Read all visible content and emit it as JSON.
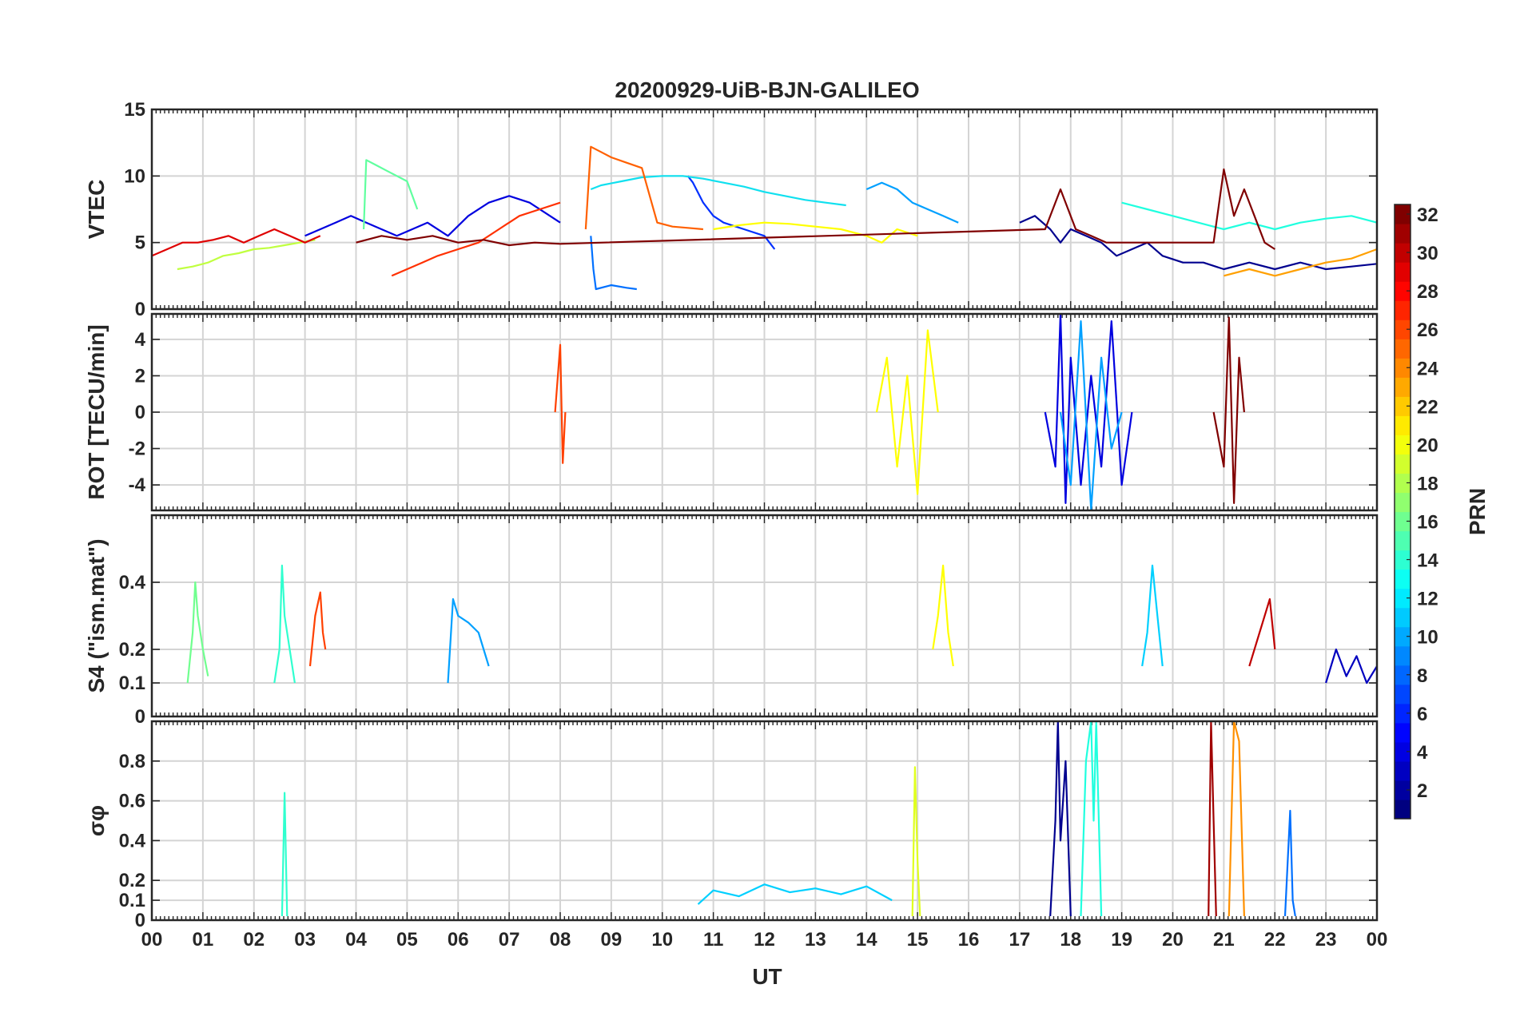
{
  "chart_data": {
    "type": "line",
    "title": "20200929-UiB-BJN-GALILEO",
    "xlabel": "UT",
    "x_tick_labels": [
      "00",
      "01",
      "02",
      "03",
      "04",
      "05",
      "06",
      "07",
      "08",
      "09",
      "10",
      "11",
      "12",
      "13",
      "14",
      "15",
      "16",
      "17",
      "18",
      "19",
      "20",
      "21",
      "22",
      "23",
      "00"
    ],
    "xlim": [
      0,
      24
    ],
    "panels": [
      {
        "id": "vtec",
        "ylabel": "VTEC",
        "ylim": [
          0,
          15
        ],
        "yticks": [
          0,
          5,
          10,
          15
        ],
        "ytick_labels": [
          "0",
          "5",
          "10",
          "15"
        ],
        "series": [
          {
            "prn": 1,
            "color": "#00008f",
            "x": [
              17.0,
              17.3,
              17.6,
              17.8,
              18.0,
              18.3,
              18.6,
              18.9,
              19.2,
              19.5,
              19.8,
              20.2,
              20.6,
              21.0,
              21.5,
              22.0,
              22.5,
              23.0,
              23.5,
              24.0
            ],
            "y": [
              6.5,
              7,
              6,
              5,
              6,
              5.5,
              5,
              4,
              4.5,
              5,
              4,
              3.5,
              3.5,
              3,
              3.5,
              3,
              3.5,
              3,
              3.2,
              3.4
            ]
          },
          {
            "prn": 3,
            "color": "#0000df",
            "x": [
              3.0,
              3.3,
              3.6,
              3.9,
              4.2,
              4.5,
              4.8,
              5.1,
              5.4,
              5.8,
              6.2,
              6.6,
              7.0,
              7.4,
              7.8,
              8.0
            ],
            "y": [
              5.5,
              6,
              6.5,
              7,
              6.5,
              6,
              5.5,
              6,
              6.5,
              5.5,
              7,
              8,
              8.5,
              8,
              7,
              6.5
            ]
          },
          {
            "prn": 5,
            "color": "#0030ff",
            "x": [
              10.5,
              10.6,
              10.8,
              11.0,
              11.2,
              11.6,
              12.0,
              12.2
            ],
            "y": [
              10,
              9.5,
              8,
              7,
              6.5,
              6,
              5.5,
              4.5
            ]
          },
          {
            "prn": 7,
            "color": "#0070ff",
            "x": [
              8.6,
              8.65,
              8.7,
              9.0,
              9.3,
              9.5
            ],
            "y": [
              5.5,
              3,
              1.5,
              1.8,
              1.6,
              1.5
            ]
          },
          {
            "prn": 9,
            "color": "#00a0ff",
            "x": [
              14.0,
              14.3,
              14.6,
              14.9,
              15.2,
              15.5,
              15.8
            ],
            "y": [
              9,
              9.5,
              9,
              8,
              7.5,
              7,
              6.5
            ]
          },
          {
            "prn": 12,
            "color": "#10e0ef",
            "x": [
              8.6,
              8.8,
              9.2,
              9.6,
              10.0,
              10.4,
              10.8,
              11.2,
              11.6,
              12.0,
              12.4,
              12.8,
              13.2,
              13.6
            ],
            "y": [
              9,
              9.3,
              9.6,
              9.9,
              10,
              10,
              9.8,
              9.5,
              9.2,
              8.8,
              8.5,
              8.2,
              8,
              7.8
            ]
          },
          {
            "prn": 13,
            "color": "#20ffdf",
            "x": [
              19.0,
              19.5,
              20.0,
              20.5,
              21.0,
              21.5,
              22.0,
              22.5,
              23.0,
              23.5,
              24.0
            ],
            "y": [
              8,
              7.5,
              7,
              6.5,
              6,
              6.5,
              6,
              6.5,
              6.8,
              7,
              6.5
            ]
          },
          {
            "prn": 15,
            "color": "#60ff9f",
            "x": [
              4.15,
              4.2,
              4.4,
              4.6,
              4.8,
              5.0,
              5.2
            ],
            "y": [
              6,
              11.2,
              10.8,
              10.4,
              10,
              9.6,
              7.5
            ]
          },
          {
            "prn": 18,
            "color": "#c0ff40",
            "x": [
              0.5,
              0.8,
              1.1,
              1.4,
              1.7,
              2.0,
              2.3,
              2.6,
              2.9,
              3.2
            ],
            "y": [
              3,
              3.2,
              3.5,
              4,
              4.2,
              4.5,
              4.6,
              4.8,
              5,
              5.2
            ]
          },
          {
            "prn": 20,
            "color": "#ffff00",
            "x": [
              11.0,
              11.5,
              12.0,
              12.5,
              13.0,
              13.5,
              14.0,
              14.3,
              14.6,
              15.0
            ],
            "y": [
              6,
              6.3,
              6.5,
              6.4,
              6.2,
              6,
              5.5,
              5,
              6,
              5.5
            ]
          },
          {
            "prn": 23,
            "color": "#ffa000",
            "x": [
              21.0,
              21.5,
              22.0,
              22.5,
              23.0,
              23.5,
              24.0
            ],
            "y": [
              2.5,
              3,
              2.5,
              3,
              3.5,
              3.8,
              4.5
            ]
          },
          {
            "prn": 25,
            "color": "#ff6000",
            "x": [
              8.5,
              8.6,
              8.8,
              9.0,
              9.3,
              9.6,
              9.9,
              10.2,
              10.5,
              10.8
            ],
            "y": [
              6,
              12.2,
              11.8,
              11.4,
              11,
              10.6,
              6.5,
              6.2,
              6.1,
              6
            ]
          },
          {
            "prn": 27,
            "color": "#ff3000",
            "x": [
              4.7,
              5.0,
              5.3,
              5.6,
              6.0,
              6.4,
              6.8,
              7.2,
              7.6,
              8.0
            ],
            "y": [
              2.5,
              3,
              3.5,
              4,
              4.5,
              5,
              6,
              7,
              7.5,
              8
            ]
          },
          {
            "prn": 29,
            "color": "#df0000",
            "x": [
              0.0,
              0.3,
              0.6,
              0.9,
              1.2,
              1.5,
              1.8,
              2.1,
              2.4,
              2.7,
              3.0,
              3.3
            ],
            "y": [
              4,
              4.5,
              5,
              5,
              5.2,
              5.5,
              5,
              5.5,
              6,
              5.5,
              5,
              5.5
            ]
          },
          {
            "prn": 32,
            "color": "#800000",
            "x": [
              4.0,
              4.5,
              5.0,
              5.5,
              6.0,
              6.5,
              7.0,
              7.5,
              8.0,
              17.5,
              17.8,
              18.1,
              18.4,
              18.7,
              20.8,
              21.0,
              21.2,
              21.4,
              21.6,
              21.8,
              22.0
            ],
            "y": [
              5,
              5.5,
              5.2,
              5.5,
              5,
              5.2,
              4.8,
              5,
              4.9,
              6,
              9,
              6,
              5.5,
              5,
              5,
              10.5,
              7,
              9,
              7,
              5,
              4.5
            ]
          }
        ]
      },
      {
        "id": "rot",
        "ylabel": "ROT [TECU/min]",
        "ylim": [
          -5.4,
          5.4
        ],
        "yticks": [
          -4,
          -2,
          0,
          2,
          4
        ],
        "ytick_labels": [
          "-4",
          "-2",
          "0",
          "2",
          "4"
        ],
        "series": [
          {
            "prn": 3,
            "color": "#0000df",
            "x": [
              17.5,
              17.7,
              17.8,
              17.9,
              18.0,
              18.2,
              18.4,
              18.6,
              18.8,
              19.0,
              19.2
            ],
            "y": [
              0,
              -3,
              5.4,
              -5,
              3,
              -4,
              2,
              -3,
              5,
              -4,
              0
            ]
          },
          {
            "prn": 9,
            "color": "#00a0ff",
            "x": [
              17.8,
              18.0,
              18.2,
              18.4,
              18.6,
              18.8,
              19.0
            ],
            "y": [
              0,
              -4,
              5,
              -5.4,
              3,
              -2,
              0
            ]
          },
          {
            "prn": 20,
            "color": "#ffff00",
            "x": [
              14.2,
              14.4,
              14.6,
              14.8,
              15.0,
              15.2,
              15.4
            ],
            "y": [
              0,
              3,
              -3,
              2,
              -4.5,
              4.5,
              0
            ]
          },
          {
            "prn": 26,
            "color": "#ff4000",
            "x": [
              7.9,
              8.0,
              8.05,
              8.1
            ],
            "y": [
              0,
              3.7,
              -2.8,
              0
            ]
          },
          {
            "prn": 32,
            "color": "#800000",
            "x": [
              20.8,
              21.0,
              21.1,
              21.2,
              21.3,
              21.4
            ],
            "y": [
              0,
              -3,
              5.2,
              -5,
              3,
              0
            ]
          }
        ]
      },
      {
        "id": "s4",
        "ylabel": "S4 (\"ism.mat\")",
        "ylim": [
          0,
          0.6
        ],
        "yticks": [
          0,
          0.1,
          0.2,
          0.4
        ],
        "ytick_labels": [
          "0",
          "0.1",
          "0.2",
          "0.4"
        ],
        "series": [
          {
            "prn": 2,
            "color": "#0000bf",
            "x": [
              23.0,
              23.2,
              23.4,
              23.6,
              23.8,
              24.0
            ],
            "y": [
              0.1,
              0.2,
              0.12,
              0.18,
              0.1,
              0.15
            ]
          },
          {
            "prn": 9,
            "color": "#00a0ff",
            "x": [
              5.8,
              5.9,
              6.0,
              6.2,
              6.4,
              6.6
            ],
            "y": [
              0.1,
              0.35,
              0.3,
              0.28,
              0.25,
              0.15
            ]
          },
          {
            "prn": 11,
            "color": "#00d0ff",
            "x": [
              19.4,
              19.5,
              19.6,
              19.7,
              19.8
            ],
            "y": [
              0.15,
              0.25,
              0.45,
              0.3,
              0.15
            ]
          },
          {
            "prn": 14,
            "color": "#30ffcf",
            "x": [
              2.4,
              2.5,
              2.55,
              2.6,
              2.7,
              2.8
            ],
            "y": [
              0.1,
              0.2,
              0.45,
              0.3,
              0.2,
              0.1
            ]
          },
          {
            "prn": 16,
            "color": "#70ff8f",
            "x": [
              0.7,
              0.8,
              0.85,
              0.9,
              1.0,
              1.1
            ],
            "y": [
              0.1,
              0.25,
              0.4,
              0.3,
              0.2,
              0.12
            ]
          },
          {
            "prn": 20,
            "color": "#ffff00",
            "x": [
              15.3,
              15.4,
              15.5,
              15.6,
              15.7
            ],
            "y": [
              0.2,
              0.3,
              0.45,
              0.25,
              0.15
            ]
          },
          {
            "prn": 26,
            "color": "#ff4000",
            "x": [
              3.1,
              3.2,
              3.3,
              3.35,
              3.4
            ],
            "y": [
              0.15,
              0.3,
              0.37,
              0.25,
              0.2
            ]
          },
          {
            "prn": 30,
            "color": "#bf0000",
            "x": [
              21.5,
              21.7,
              21.9,
              22.0
            ],
            "y": [
              0.15,
              0.25,
              0.35,
              0.2
            ]
          }
        ]
      },
      {
        "id": "sigma_phi",
        "ylabel": "σφ",
        "ylim": [
          0,
          1
        ],
        "yticks": [
          0,
          0.1,
          0.2,
          0.4,
          0.6,
          0.8
        ],
        "ytick_labels": [
          "0",
          "0.1",
          "0.2",
          "0.4",
          "0.6",
          "0.8"
        ],
        "series": [
          {
            "prn": 1,
            "color": "#00008f",
            "x": [
              17.6,
              17.7,
              17.75,
              17.8,
              17.9,
              18.0
            ],
            "y": [
              0.02,
              0.5,
              1.0,
              0.4,
              0.8,
              0.02
            ]
          },
          {
            "prn": 11,
            "color": "#00d0ff",
            "x": [
              10.7,
              11.0,
              11.5,
              12.0,
              12.5,
              13.0,
              13.5,
              14.0,
              14.5
            ],
            "y": [
              0.08,
              0.15,
              0.12,
              0.18,
              0.14,
              0.16,
              0.13,
              0.17,
              0.1
            ]
          },
          {
            "prn": 13,
            "color": "#20ffdf",
            "x": [
              18.2,
              18.3,
              18.4,
              18.45,
              18.5,
              18.6
            ],
            "y": [
              0.02,
              0.8,
              1.0,
              0.5,
              1.0,
              0.02
            ]
          },
          {
            "prn": 14,
            "color": "#30ffcf",
            "x": [
              2.55,
              2.6,
              2.65
            ],
            "y": [
              0.02,
              0.64,
              0.02
            ]
          },
          {
            "prn": 19,
            "color": "#e0ff20",
            "x": [
              14.9,
              14.95,
              15.0,
              15.05
            ],
            "y": [
              0.02,
              0.77,
              0.3,
              0.02
            ]
          },
          {
            "prn": 7,
            "color": "#0070ff",
            "x": [
              22.2,
              22.3,
              22.35,
              22.4
            ],
            "y": [
              0.02,
              0.55,
              0.1,
              0.02
            ]
          },
          {
            "prn": 24,
            "color": "#ff9000",
            "x": [
              21.1,
              21.2,
              21.3,
              21.4
            ],
            "y": [
              0.02,
              1.0,
              0.9,
              0.02
            ]
          },
          {
            "prn": 31,
            "color": "#a00000",
            "x": [
              20.7,
              20.75,
              20.8,
              20.85
            ],
            "y": [
              0.02,
              1.0,
              0.5,
              0.02
            ]
          }
        ]
      }
    ],
    "colorbar": {
      "label": "PRN",
      "range": [
        1,
        32
      ],
      "tick_labels": [
        "2",
        "4",
        "6",
        "8",
        "10",
        "12",
        "14",
        "16",
        "18",
        "20",
        "22",
        "24",
        "26",
        "28",
        "30",
        "32"
      ],
      "colormap": "jet"
    },
    "grid": true
  }
}
